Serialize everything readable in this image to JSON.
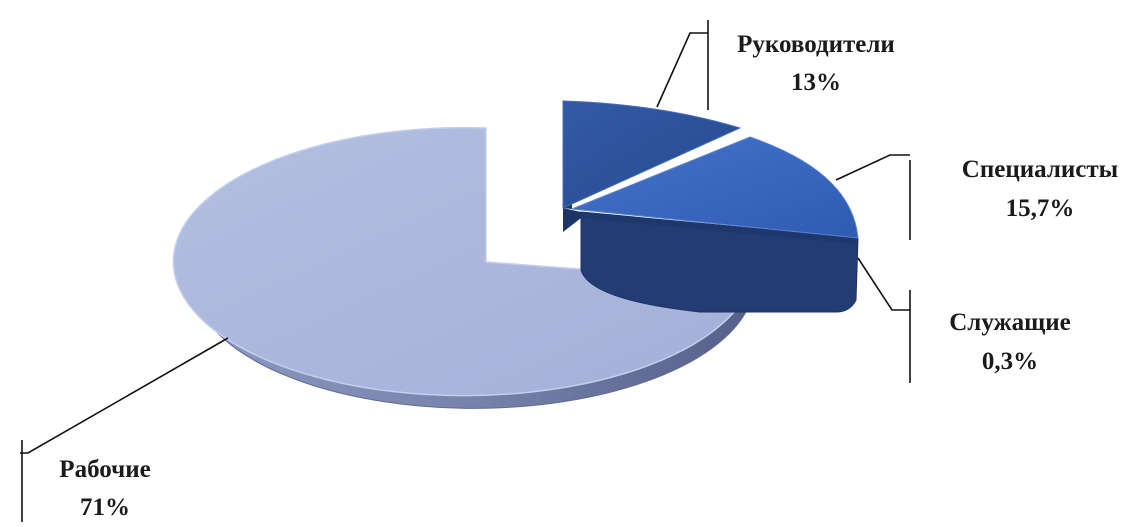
{
  "chart_data": {
    "type": "pie",
    "title": "",
    "slices": [
      {
        "label": "Руководители",
        "value": 13,
        "value_label": "13%",
        "color": "#2b4f96"
      },
      {
        "label": "Специалисты",
        "value": 15.7,
        "value_label": "15,7%",
        "color": "#3a66bf"
      },
      {
        "label": "Служащие",
        "value": 0.3,
        "value_label": "0,3%",
        "color": "#243f78"
      },
      {
        "label": "Рабочие",
        "value": 71,
        "value_label": "71%",
        "color": "#aab6dc"
      }
    ],
    "style": "3d-exploded",
    "legend": "none"
  }
}
